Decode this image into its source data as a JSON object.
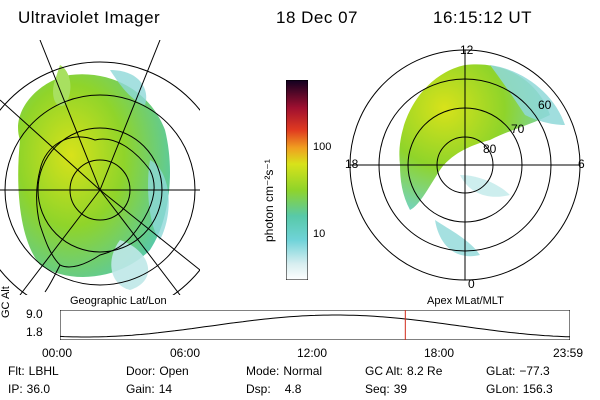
{
  "header": {
    "instrument": "Ultraviolet Imager",
    "date": "18 Dec 07",
    "time": "16:15:12 UT"
  },
  "panels": {
    "left_label": "Geographic Lat/Lon",
    "right_label": "Apex MLat/MLT"
  },
  "colorbar": {
    "unit": "photon cm⁻²s⁻¹",
    "tick_100": "100",
    "tick_10": "10"
  },
  "polar_plot": {
    "mlt_12": "12",
    "mlt_18": "18",
    "mlt_6": "6",
    "mlt_0": "0",
    "lat_60": "60",
    "lat_70": "70",
    "lat_80": "80"
  },
  "orbit_plot": {
    "ylabel": "GC Alt",
    "y_max_label": "9.0",
    "y_min_label": "1.8",
    "x_labels": [
      "00:00",
      "06:00",
      "12:00",
      "18:00",
      "23:59"
    ],
    "current_time_marker_hours": 16.25
  },
  "info": {
    "filter_key": "Flt:",
    "filter_val": "LBHL",
    "door_key": "Door:",
    "door_val": "Open",
    "mode_key": "Mode:",
    "mode_val": "Normal",
    "gcalt_key": "GC Alt:",
    "gcalt_val": "8.2 Re",
    "glat_key": "GLat:",
    "glat_val": "−77.3",
    "ip_key": "IP:",
    "ip_val": "36.0",
    "gain_key": "Gain:",
    "gain_val": "14",
    "dsp_key": "Dsp:",
    "dsp_val": "4.8",
    "seq_key": "Seq:",
    "seq_val": "39",
    "glon_key": "GLon:",
    "glon_val": "156.3"
  },
  "colors": {
    "aurora_green": "#8fd42a",
    "aurora_yellow": "#d8e21a",
    "aurora_cyan": "#6fd3d8",
    "marker_red": "#d22a1a"
  }
}
